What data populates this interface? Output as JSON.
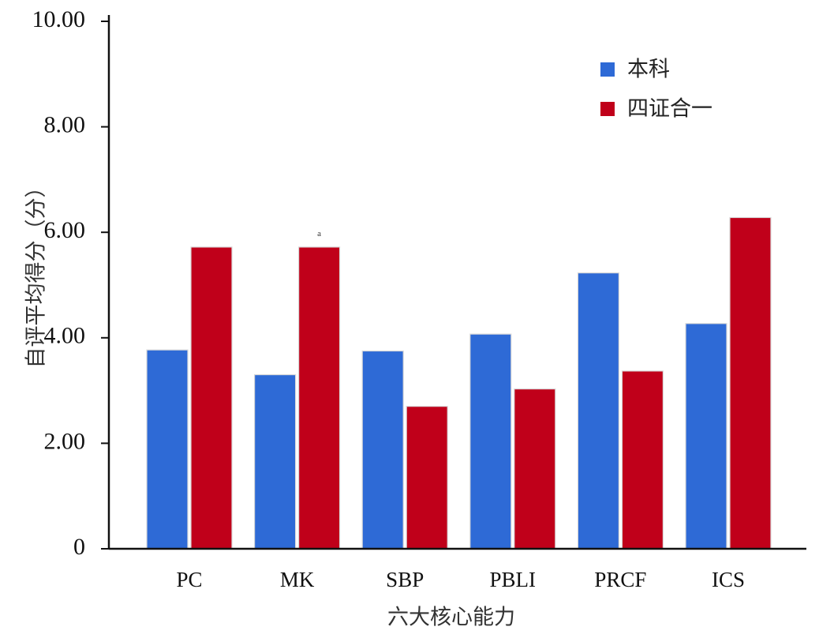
{
  "chart_data": {
    "type": "bar",
    "categories": [
      "PC",
      "MK",
      "SBP",
      "PBLI",
      "PRCF",
      "ICS"
    ],
    "series": [
      {
        "name": "本科",
        "color": "#2e6ad6",
        "values": [
          3.77,
          3.3,
          3.75,
          4.07,
          5.23,
          4.27
        ]
      },
      {
        "name": "四证合一",
        "color": "#c0001a",
        "values": [
          5.72,
          5.72,
          2.7,
          3.03,
          3.37,
          6.28
        ]
      }
    ],
    "xlabel": "六大核心能力",
    "ylabel": "自评平均得分（分）",
    "ylim": [
      0,
      10
    ],
    "yticks": [
      {
        "value": 0,
        "label": "0"
      },
      {
        "value": 2,
        "label": "2.00"
      },
      {
        "value": 4,
        "label": "4.00"
      },
      {
        "value": 6,
        "label": "6.00"
      },
      {
        "value": 8,
        "label": "8.00"
      },
      {
        "value": 10,
        "label": "10.00"
      }
    ],
    "annotations": [
      {
        "category": "MK",
        "series": "四证合一",
        "text": "a"
      }
    ],
    "legend": "top-right",
    "grid": false
  }
}
